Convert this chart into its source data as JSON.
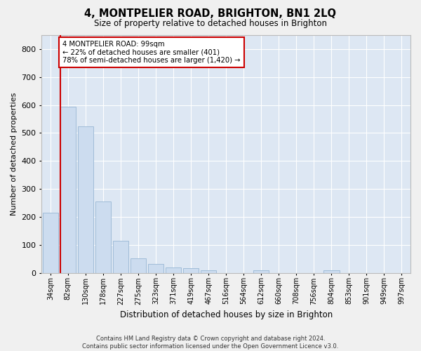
{
  "title": "4, MONTPELIER ROAD, BRIGHTON, BN1 2LQ",
  "subtitle": "Size of property relative to detached houses in Brighton",
  "xlabel": "Distribution of detached houses by size in Brighton",
  "ylabel": "Number of detached properties",
  "categories": [
    "34sqm",
    "82sqm",
    "130sqm",
    "178sqm",
    "227sqm",
    "275sqm",
    "323sqm",
    "371sqm",
    "419sqm",
    "467sqm",
    "516sqm",
    "564sqm",
    "612sqm",
    "660sqm",
    "708sqm",
    "756sqm",
    "804sqm",
    "853sqm",
    "901sqm",
    "949sqm",
    "997sqm"
  ],
  "values": [
    215,
    595,
    523,
    255,
    115,
    52,
    31,
    20,
    16,
    10,
    0,
    0,
    10,
    0,
    0,
    0,
    8,
    0,
    0,
    0,
    0
  ],
  "bar_color": "#ccdcef",
  "bar_edge_color": "#a0bcd8",
  "property_line_index": 1,
  "property_line_color": "#cc0000",
  "annotation_text": "4 MONTPELIER ROAD: 99sqm\n← 22% of detached houses are smaller (401)\n78% of semi-detached houses are larger (1,420) →",
  "annotation_box_color": "#cc0000",
  "footer_line1": "Contains HM Land Registry data © Crown copyright and database right 2024.",
  "footer_line2": "Contains public sector information licensed under the Open Government Licence v3.0.",
  "ylim": [
    0,
    850
  ],
  "yticks": [
    0,
    100,
    200,
    300,
    400,
    500,
    600,
    700,
    800
  ],
  "background_color": "#dde7f3",
  "grid_color": "#ffffff",
  "fig_bg_color": "#f0f0f0"
}
